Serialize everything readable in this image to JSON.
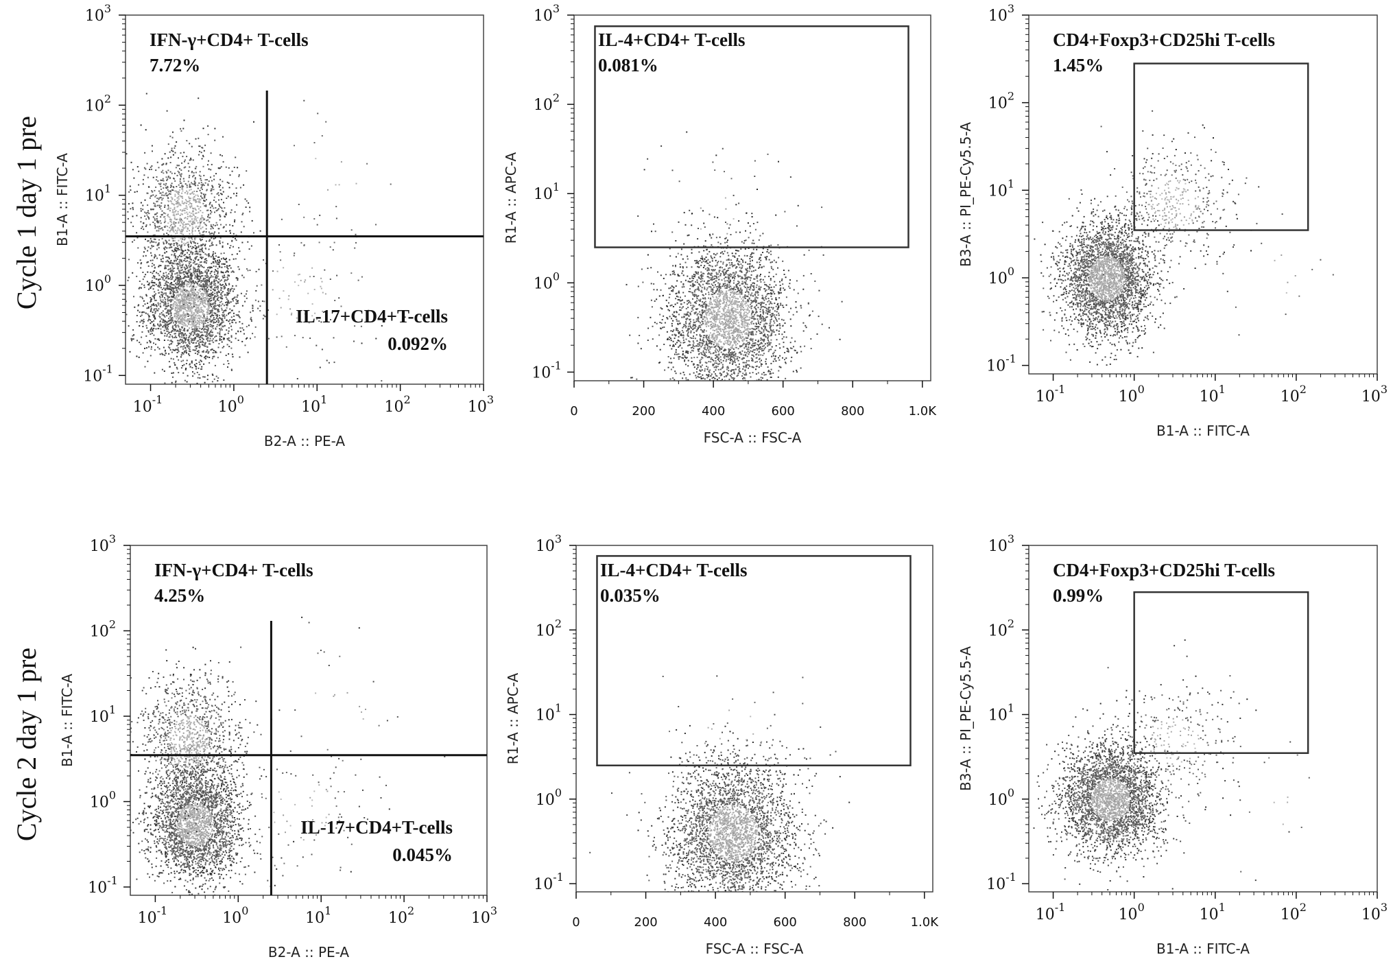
{
  "chart_data": [
    {
      "type": "scatter",
      "row_label": "Cycle 1 day 1 pre",
      "xlabel": "B2-A :: PE-A",
      "ylabel": "B1-A :: FITC-A",
      "xscale": "log",
      "yscale": "log",
      "xlim": [
        0.05,
        1000
      ],
      "ylim": [
        0.08,
        1000
      ],
      "gate": {
        "kind": "quadrant",
        "x": 2.5,
        "y": 3.5
      },
      "annotations": [
        {
          "text": "IFN-γ+CD4+  T-cells",
          "value": "7.72%",
          "pos": "top-left"
        },
        {
          "text": "IL-17+CD4+T-cells",
          "value": "0.092%",
          "pos": "bottom-right"
        }
      ],
      "populations": [
        {
          "cx": 0.3,
          "cy": 0.6,
          "sx": 0.28,
          "sy": 0.32,
          "n": 2600
        },
        {
          "cx": 0.25,
          "cy": 6,
          "sx": 0.3,
          "sy": 0.4,
          "n": 1300
        },
        {
          "cx": 6,
          "cy": 0.8,
          "sx": 0.5,
          "sy": 0.45,
          "n": 120
        },
        {
          "cx": 15,
          "cy": 15,
          "sx": 0.5,
          "sy": 0.5,
          "n": 25
        }
      ]
    },
    {
      "type": "scatter",
      "row_label": "",
      "xlabel": "FSC-A :: FSC-A",
      "ylabel": "R1-A :: APC-A",
      "xscale": "linear",
      "yscale": "log",
      "xlim": [
        0,
        1024
      ],
      "ylim": [
        0.08,
        1000
      ],
      "gate": {
        "kind": "rect",
        "x0": 60,
        "x1": 960,
        "y0": 2.5,
        "y1": 750
      },
      "annotations": [
        {
          "text": "IL-4+CD4+  T-cells",
          "value": "0.081%",
          "pos": "top-left"
        }
      ],
      "populations": [
        {
          "cx": 440,
          "cy": 0.4,
          "sx": 85,
          "sy": 0.42,
          "n": 3200
        },
        {
          "cx": 430,
          "cy": 6,
          "sx": 120,
          "sy": 0.4,
          "n": 40
        }
      ]
    },
    {
      "type": "scatter",
      "row_label": "",
      "xlabel": "B1-A :: FITC-A",
      "ylabel": "B3-A :: PI_PE-Cy5.5-A",
      "xscale": "log",
      "yscale": "log",
      "xlim": [
        0.05,
        1000
      ],
      "ylim": [
        0.08,
        1000
      ],
      "gate": {
        "kind": "rect",
        "x0": 1,
        "x1": 140,
        "y0": 3.5,
        "y1": 280
      },
      "annotations": [
        {
          "text": "CD4+Foxp3+CD25hi  T-cells",
          "value": "1.45%",
          "pos": "top-left"
        }
      ],
      "populations": [
        {
          "cx": 0.45,
          "cy": 1.0,
          "sx": 0.28,
          "sy": 0.32,
          "n": 3000
        },
        {
          "cx": 3,
          "cy": 7,
          "sx": 0.4,
          "sy": 0.35,
          "n": 450
        },
        {
          "cx": 60,
          "cy": 1,
          "sx": 0.4,
          "sy": 0.4,
          "n": 15
        }
      ]
    },
    {
      "type": "scatter",
      "row_label": "Cycle 2 day 1 pre",
      "xlabel": "B2-A :: PE-A",
      "ylabel": "B1-A :: FITC-A",
      "xscale": "log",
      "yscale": "log",
      "xlim": [
        0.05,
        1000
      ],
      "ylim": [
        0.08,
        1000
      ],
      "gate": {
        "kind": "quadrant",
        "x": 2.5,
        "y": 3.5
      },
      "annotations": [
        {
          "text": "IFN-γ+CD4+  T-cells",
          "value": "4.25%",
          "pos": "top-left"
        },
        {
          "text": "IL-17+CD4+T-cells",
          "value": "0.045%",
          "pos": "bottom-right"
        }
      ],
      "populations": [
        {
          "cx": 0.3,
          "cy": 0.55,
          "sx": 0.28,
          "sy": 0.32,
          "n": 2600
        },
        {
          "cx": 0.25,
          "cy": 5,
          "sx": 0.3,
          "sy": 0.4,
          "n": 1200
        },
        {
          "cx": 6,
          "cy": 0.8,
          "sx": 0.5,
          "sy": 0.45,
          "n": 110
        },
        {
          "cx": 15,
          "cy": 15,
          "sx": 0.5,
          "sy": 0.5,
          "n": 25
        }
      ]
    },
    {
      "type": "scatter",
      "row_label": "",
      "xlabel": "FSC-A :: FSC-A",
      "ylabel": "R1-A :: APC-A",
      "xscale": "linear",
      "yscale": "log",
      "xlim": [
        0,
        1024
      ],
      "ylim": [
        0.08,
        1000
      ],
      "gate": {
        "kind": "rect",
        "x0": 60,
        "x1": 960,
        "y0": 2.5,
        "y1": 750
      },
      "annotations": [
        {
          "text": "IL-4+CD4+  T-cells",
          "value": "0.035%",
          "pos": "top-left"
        }
      ],
      "populations": [
        {
          "cx": 450,
          "cy": 0.4,
          "sx": 90,
          "sy": 0.42,
          "n": 3200
        },
        {
          "cx": 440,
          "cy": 6,
          "sx": 120,
          "sy": 0.4,
          "n": 40
        }
      ]
    },
    {
      "type": "scatter",
      "row_label": "",
      "xlabel": "B1-A :: FITC-A",
      "ylabel": "B3-A :: PI_PE-Cy5.5-A",
      "xscale": "log",
      "yscale": "log",
      "xlim": [
        0.05,
        1000
      ],
      "ylim": [
        0.08,
        1000
      ],
      "gate": {
        "kind": "rect",
        "x0": 1,
        "x1": 140,
        "y0": 3.5,
        "y1": 280
      },
      "annotations": [
        {
          "text": "CD4+Foxp3+CD25hi  T-cells",
          "value": "0.99%",
          "pos": "top-left"
        }
      ],
      "populations": [
        {
          "cx": 0.5,
          "cy": 1.0,
          "sx": 0.3,
          "sy": 0.32,
          "n": 3000
        },
        {
          "cx": 3,
          "cy": 5,
          "sx": 0.4,
          "sy": 0.35,
          "n": 300
        },
        {
          "cx": 60,
          "cy": 1,
          "sx": 0.4,
          "sy": 0.4,
          "n": 15
        }
      ]
    }
  ],
  "log_tick_labels": [
    "10",
    "10",
    "10",
    "10",
    "10"
  ],
  "log_tick_exps": [
    "-1",
    "0",
    "1",
    "2",
    "3"
  ],
  "lin_tick_labels": [
    "0",
    "200",
    "400",
    "600",
    "800",
    "1.0K"
  ]
}
